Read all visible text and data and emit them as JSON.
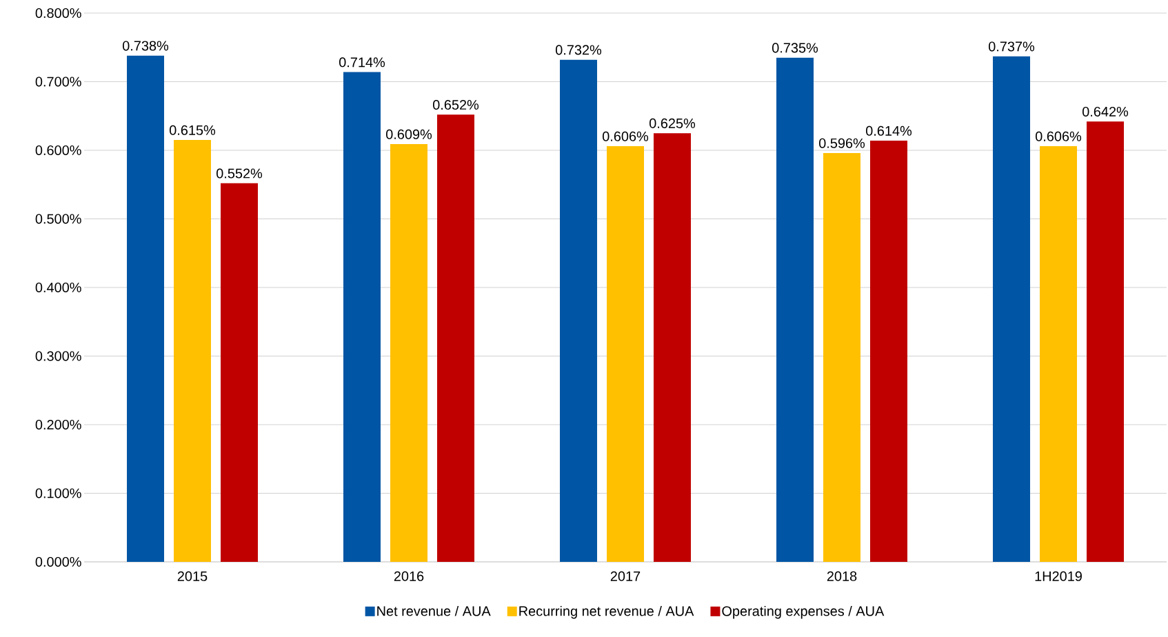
{
  "chart_data": {
    "type": "bar",
    "categories": [
      "2015",
      "2016",
      "2017",
      "2018",
      "1H2019"
    ],
    "series": [
      {
        "name": "Net revenue / AUA",
        "color": "#0055a4",
        "values": [
          0.738,
          0.714,
          0.732,
          0.735,
          0.737
        ],
        "value_labels": [
          "0.738%",
          "0.714%",
          "0.732%",
          "0.735%",
          "0.737%"
        ]
      },
      {
        "name": "Recurring net revenue / AUA",
        "color": "#ffc000",
        "values": [
          0.615,
          0.609,
          0.606,
          0.596,
          0.606
        ],
        "value_labels": [
          "0.615%",
          "0.609%",
          "0.606%",
          "0.596%",
          "0.606%"
        ]
      },
      {
        "name": "Operating expenses / AUA",
        "color": "#c00000",
        "values": [
          0.552,
          0.652,
          0.625,
          0.614,
          0.642
        ],
        "value_labels": [
          "0.552%",
          "0.652%",
          "0.625%",
          "0.614%",
          "0.642%"
        ]
      }
    ],
    "ylim": [
      0,
      0.8
    ],
    "yticks": [
      {
        "value": 0,
        "label": "0.000%"
      },
      {
        "value": 0.1,
        "label": "0.100%"
      },
      {
        "value": 0.2,
        "label": "0.200%"
      },
      {
        "value": 0.3,
        "label": "0.300%"
      },
      {
        "value": 0.4,
        "label": "0.400%"
      },
      {
        "value": 0.5,
        "label": "0.500%"
      },
      {
        "value": 0.6,
        "label": "0.600%"
      },
      {
        "value": 0.7,
        "label": "0.700%"
      },
      {
        "value": 0.8,
        "label": "0.800%"
      }
    ],
    "grid": "y",
    "legend": "bottom"
  }
}
